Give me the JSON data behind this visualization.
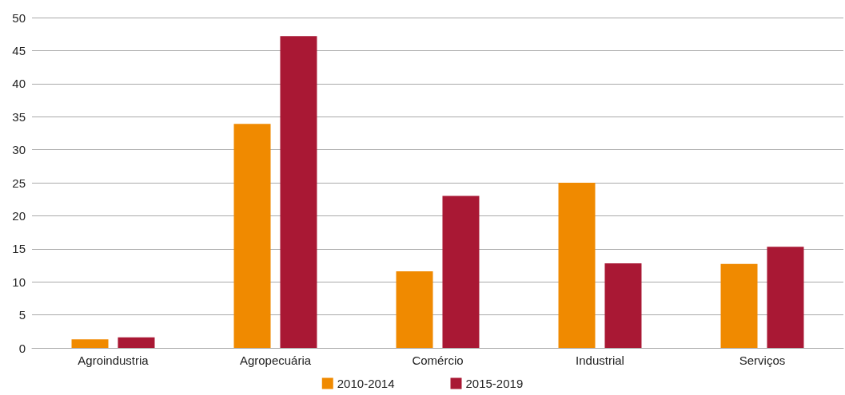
{
  "chart_data": {
    "type": "bar",
    "categories": [
      "Agroindustria",
      "Agropecuária",
      "Comércio",
      "Industrial",
      "Serviços"
    ],
    "series": [
      {
        "name": "2010-2014",
        "color": "#f08a00",
        "values": [
          1.3,
          33.9,
          11.6,
          25.0,
          12.7
        ]
      },
      {
        "name": "2015-2019",
        "color": "#a91834",
        "values": [
          1.6,
          47.2,
          23.0,
          12.8,
          15.3
        ]
      }
    ],
    "ylim": [
      0,
      50
    ],
    "yticks": [
      0,
      5,
      10,
      15,
      20,
      25,
      30,
      35,
      40,
      45,
      50
    ],
    "grid": "y",
    "legend": "bottom"
  }
}
